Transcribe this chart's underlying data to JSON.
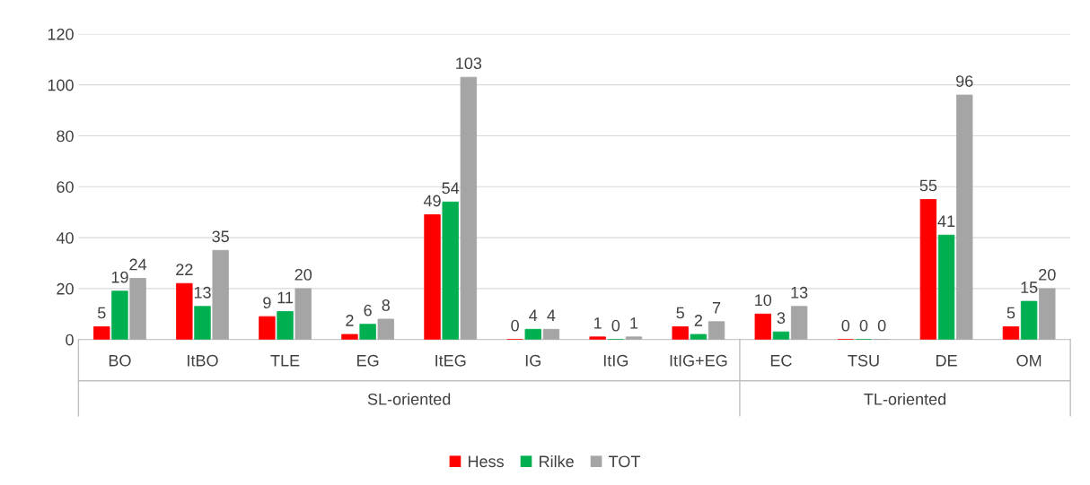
{
  "chart_data": {
    "type": "bar",
    "categories": [
      "BO",
      "ItBO",
      "TLE",
      "EG",
      "ItEG",
      "IG",
      "ItIG",
      "ItIG+EG",
      "EC",
      "TSU",
      "DE",
      "OM"
    ],
    "series": [
      {
        "name": "Hess",
        "color": "#ff0000",
        "values": [
          5,
          22,
          9,
          2,
          49,
          0,
          1,
          5,
          10,
          0,
          55,
          5
        ]
      },
      {
        "name": "Rilke",
        "color": "#00b050",
        "values": [
          19,
          13,
          11,
          6,
          54,
          4,
          0,
          2,
          3,
          0,
          41,
          15
        ]
      },
      {
        "name": "TOT",
        "color": "#a5a5a5",
        "values": [
          24,
          35,
          20,
          8,
          103,
          4,
          1,
          7,
          13,
          0,
          96,
          20
        ]
      }
    ],
    "ylim": [
      0,
      120
    ],
    "yticks": [
      0,
      20,
      40,
      60,
      80,
      100,
      120
    ],
    "grid": "y",
    "legend": "bottom",
    "data_labels": true,
    "annotations": [
      "SL-oriented",
      "TL-oriented"
    ]
  }
}
